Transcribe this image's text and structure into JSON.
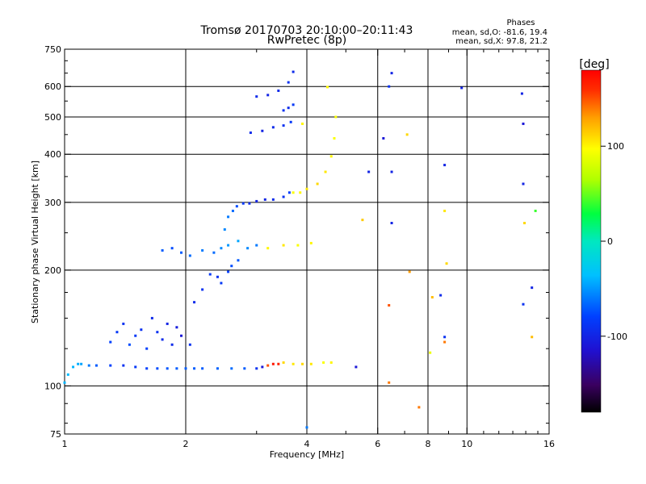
{
  "header": {
    "title": "Tromsø 20170703 20:10:00–20:11:43",
    "subtitle": "RwPretec (8p)"
  },
  "phases_box": {
    "heading": "Phases",
    "line_o": "mean, sd,O:  -81.6, 19.4",
    "line_x": "mean, sd,X:  97.8, 21.2"
  },
  "colorbar": {
    "label": "[deg]",
    "min": -180,
    "max": 180,
    "ticks": [
      {
        "value": 100,
        "label": "100"
      },
      {
        "value": 0,
        "label": "0"
      },
      {
        "value": -100,
        "label": "-100"
      }
    ]
  },
  "chart_data": {
    "type": "scatter",
    "title": "Tromsø 20170703 20:10:00–20:11:43",
    "subtitle": "RwPretec (8p)",
    "xlabel": "Frequency [MHz]",
    "ylabel": "Stationary phase Virtual Height [km]",
    "x_scale": "log",
    "y_scale": "log",
    "xlim": [
      1,
      16
    ],
    "ylim": [
      75,
      750
    ],
    "x_ticks": [
      1,
      2,
      4,
      6,
      8,
      10,
      16
    ],
    "x_ticklabels": [
      "1",
      "2",
      "4",
      "6",
      "8",
      "10",
      "16"
    ],
    "x_minor_ticks": [
      3,
      5,
      7,
      9,
      11,
      12,
      13,
      14,
      15
    ],
    "y_ticks": [
      75,
      100,
      200,
      300,
      400,
      500,
      600,
      750
    ],
    "y_ticklabels": [
      "75",
      "100",
      "200",
      "300",
      "400",
      "500",
      "600",
      "750"
    ],
    "x_gridlines": [
      2,
      4,
      6,
      8,
      10
    ],
    "y_gridlines": [
      100,
      200,
      300,
      400,
      500,
      600
    ],
    "grid": true,
    "color_variable": "phase [deg]",
    "series": [
      {
        "points": [
          [
            1.0,
            102,
            -40
          ],
          [
            1.02,
            107,
            -38
          ],
          [
            1.05,
            112,
            -40
          ],
          [
            1.08,
            114,
            -42
          ],
          [
            1.1,
            114,
            -45
          ],
          [
            1.15,
            113,
            -60
          ],
          [
            1.2,
            113,
            -70
          ],
          [
            1.3,
            113,
            -80
          ],
          [
            1.4,
            113,
            -90
          ],
          [
            1.5,
            112,
            -85
          ],
          [
            1.6,
            111,
            -80
          ],
          [
            1.7,
            111,
            -75
          ],
          [
            1.8,
            111,
            -72
          ],
          [
            1.9,
            111,
            -70
          ],
          [
            2.0,
            111,
            -70
          ],
          [
            2.1,
            111,
            -70
          ],
          [
            2.2,
            111,
            -70
          ],
          [
            2.4,
            111,
            -68
          ],
          [
            2.6,
            111,
            -65
          ],
          [
            2.8,
            111,
            -70
          ],
          [
            3.0,
            111,
            -90
          ],
          [
            3.1,
            112,
            -110
          ],
          [
            3.2,
            113,
            150
          ],
          [
            3.3,
            114,
            170
          ],
          [
            3.4,
            114,
            165
          ],
          [
            3.5,
            115,
            110
          ],
          [
            3.7,
            114,
            105
          ],
          [
            3.9,
            114,
            110
          ],
          [
            4.1,
            114,
            105
          ],
          [
            4.4,
            115,
            95
          ],
          [
            4.6,
            115,
            100
          ]
        ]
      },
      {
        "points": [
          [
            1.3,
            130,
            -80
          ],
          [
            1.35,
            138,
            -85
          ],
          [
            1.4,
            145,
            -90
          ],
          [
            1.45,
            128,
            -75
          ],
          [
            1.5,
            135,
            -85
          ],
          [
            1.55,
            140,
            -90
          ],
          [
            1.6,
            125,
            -80
          ],
          [
            1.65,
            150,
            -95
          ],
          [
            1.7,
            138,
            -90
          ],
          [
            1.75,
            132,
            -95
          ],
          [
            1.8,
            145,
            -100
          ],
          [
            1.85,
            128,
            -95
          ],
          [
            1.9,
            142,
            -105
          ],
          [
            1.95,
            135,
            -110
          ],
          [
            2.05,
            128,
            -90
          ]
        ]
      },
      {
        "points": [
          [
            2.1,
            165,
            -95
          ],
          [
            2.2,
            178,
            -90
          ],
          [
            2.3,
            195,
            -85
          ],
          [
            2.4,
            192,
            -90
          ],
          [
            2.45,
            185,
            -85
          ],
          [
            2.55,
            198,
            -80
          ],
          [
            2.6,
            205,
            -75
          ],
          [
            2.7,
            212,
            -70
          ]
        ]
      },
      {
        "points": [
          [
            1.75,
            225,
            -70
          ],
          [
            1.85,
            228,
            -75
          ],
          [
            1.95,
            222,
            -70
          ],
          [
            2.05,
            218,
            -65
          ],
          [
            2.2,
            225,
            -60
          ],
          [
            2.35,
            222,
            -65
          ],
          [
            2.45,
            228,
            -55
          ],
          [
            2.55,
            232,
            -50
          ],
          [
            2.7,
            238,
            -45
          ],
          [
            2.85,
            228,
            -55
          ],
          [
            3.0,
            232,
            -60
          ],
          [
            3.2,
            228,
            100
          ],
          [
            3.5,
            232,
            105
          ],
          [
            3.8,
            232,
            95
          ],
          [
            4.1,
            235,
            100
          ]
        ]
      },
      {
        "points": [
          [
            2.5,
            255,
            -55
          ],
          [
            2.55,
            275,
            -60
          ],
          [
            2.62,
            285,
            -65
          ],
          [
            2.68,
            293,
            -75
          ],
          [
            2.78,
            298,
            -85
          ],
          [
            2.88,
            298,
            -95
          ],
          [
            3.0,
            302,
            -100
          ],
          [
            3.15,
            305,
            -100
          ],
          [
            3.3,
            305,
            -95
          ],
          [
            3.5,
            310,
            -90
          ],
          [
            3.62,
            318,
            -80
          ],
          [
            3.7,
            318,
            95
          ],
          [
            3.85,
            318,
            100
          ],
          [
            4.0,
            325,
            105
          ],
          [
            4.25,
            335,
            110
          ],
          [
            4.45,
            360,
            105
          ],
          [
            4.6,
            395,
            100
          ],
          [
            4.68,
            440,
            95
          ],
          [
            4.72,
            500,
            95
          ]
        ]
      },
      {
        "points": [
          [
            2.9,
            455,
            -95
          ],
          [
            3.1,
            460,
            -100
          ],
          [
            3.3,
            470,
            -95
          ],
          [
            3.5,
            475,
            -90
          ],
          [
            3.65,
            485,
            -85
          ],
          [
            3.9,
            480,
            100
          ]
        ]
      },
      {
        "points": [
          [
            3.0,
            565,
            -95
          ],
          [
            3.2,
            570,
            -100
          ],
          [
            3.4,
            585,
            -95
          ],
          [
            3.6,
            615,
            -90
          ],
          [
            3.7,
            655,
            -95
          ]
        ]
      },
      {
        "points": [
          [
            3.5,
            520,
            -90
          ],
          [
            3.6,
            528,
            -95
          ],
          [
            3.7,
            538,
            -85
          ],
          [
            4.5,
            598,
            100
          ],
          [
            5.7,
            360,
            -100
          ],
          [
            6.2,
            440,
            -110
          ],
          [
            6.4,
            600,
            -90
          ],
          [
            6.5,
            360,
            -100
          ],
          [
            6.5,
            265,
            -100
          ],
          [
            6.5,
            650,
            -100
          ],
          [
            6.4,
            162,
            150
          ],
          [
            6.4,
            102,
            140
          ],
          [
            7.1,
            450,
            110
          ],
          [
            7.2,
            198,
            130
          ],
          [
            8.8,
            375,
            -100
          ],
          [
            8.8,
            285,
            105
          ],
          [
            8.9,
            208,
            110
          ],
          [
            8.8,
            134,
            -90
          ],
          [
            8.8,
            130,
            140
          ],
          [
            9.7,
            595,
            -100
          ],
          [
            13.7,
            575,
            -100
          ],
          [
            13.8,
            480,
            -110
          ],
          [
            13.8,
            335,
            -100
          ],
          [
            13.9,
            265,
            110
          ],
          [
            13.8,
            163,
            -90
          ],
          [
            14.5,
            180,
            -100
          ],
          [
            14.5,
            134,
            120
          ],
          [
            14.8,
            285,
            40
          ],
          [
            5.5,
            270,
            115
          ],
          [
            8.2,
            170,
            120
          ],
          [
            7.6,
            88,
            140
          ],
          [
            8.1,
            122,
            90
          ],
          [
            5.3,
            112,
            -110
          ],
          [
            4.0,
            78,
            -60
          ],
          [
            8.6,
            172,
            -95
          ]
        ]
      }
    ]
  }
}
